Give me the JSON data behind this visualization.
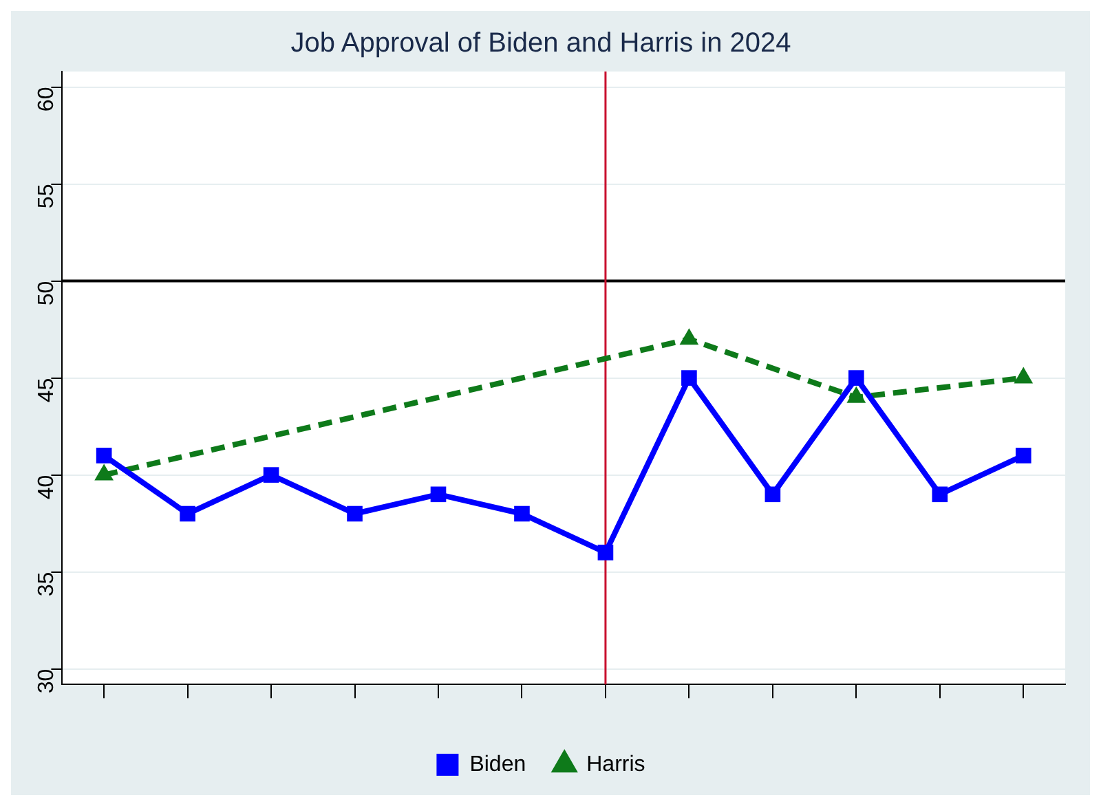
{
  "chart_data": {
    "type": "line",
    "title": "Job Approval of Biden and Harris in 2024",
    "categories": [
      null,
      null,
      null,
      null,
      null,
      null,
      null,
      null,
      null,
      null,
      null,
      null
    ],
    "series": [
      {
        "name": "Biden",
        "color": "#0000ff",
        "marker": "square",
        "line_style": "solid",
        "values": [
          41,
          38,
          40,
          38,
          39,
          38,
          36,
          45,
          39,
          45,
          39,
          41
        ]
      },
      {
        "name": "Harris",
        "color": "#0e7a1a",
        "marker": "triangle",
        "line_style": "dashed",
        "values": [
          40,
          null,
          null,
          null,
          null,
          null,
          null,
          47,
          null,
          44,
          null,
          45
        ]
      }
    ],
    "ylim": [
      29.2,
      60.8
    ],
    "yticks": [
      30,
      35,
      40,
      45,
      50,
      55,
      60
    ],
    "grid": "y",
    "legend": "bottom",
    "ref_lines": [
      {
        "axis": "y",
        "value": 50,
        "color": "#000000"
      }
    ]
  }
}
